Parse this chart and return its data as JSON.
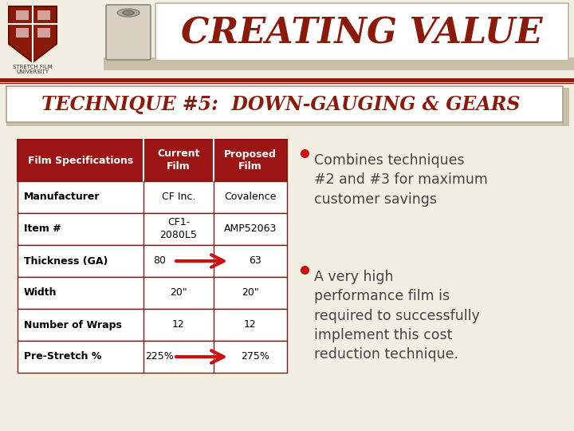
{
  "title": "CREATING VALUE",
  "subtitle": "TECHNIQUE #5:  DOWN-GAUGING & GEARS",
  "bg_color": "#f2efe2",
  "title_color": "#8B1A0A",
  "subtitle_color": "#8B1A0A",
  "header_bg": "#9B1515",
  "header_text_color": "#ffffff",
  "table_border_color": "#8B1515",
  "table_rows": [
    [
      "Manufacturer",
      "CF Inc.",
      "Covalence",
      false
    ],
    [
      "Item #",
      "CF1-\n2080L5",
      "AMP52063",
      false
    ],
    [
      "Thickness (GA)",
      "80",
      "63",
      true
    ],
    [
      "Width",
      "20\"",
      "20\"",
      false
    ],
    [
      "Number of Wraps",
      "12",
      "12",
      false
    ],
    [
      "Pre-Stretch %",
      "225%",
      "275%",
      true
    ]
  ],
  "col_headers": [
    "Film Specifications",
    "Current\nFilm",
    "Proposed\nFilm"
  ],
  "bullet1": "Combines techniques\n#2 and #3 for maximum\ncustomer savings",
  "bullet2": "A very high\nperformance film is\nrequired to successfully\nimplement this cost\nreduction technique.",
  "arrow_color": "#cc1111",
  "header_line_color": "#8B1A0A",
  "banner_bg": "#f2efe2",
  "white_box_color": "#ffffff",
  "subtitle_box_bg": "#ffffff",
  "subtitle_outer_bg": "#c8bfa8",
  "tan_strip_color": "#c8bfa8",
  "bullet_color": "#cc1111",
  "bullet_text_color": "#444444"
}
